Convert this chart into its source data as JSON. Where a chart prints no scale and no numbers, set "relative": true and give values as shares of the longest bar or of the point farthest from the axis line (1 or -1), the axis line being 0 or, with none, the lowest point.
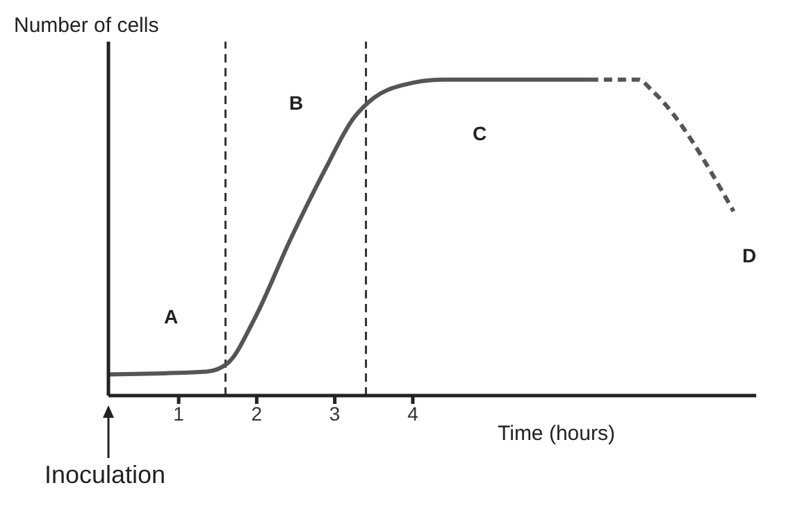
{
  "chart_data": {
    "type": "line",
    "relative": true,
    "xlabel": "Time (hours)",
    "ylabel": "Number of cells",
    "xlim": [
      0.1,
      8.4
    ],
    "xticks": [
      1,
      2,
      3,
      4
    ],
    "grid": false,
    "legend": false,
    "marker": "none",
    "series": [
      {
        "color": "#555555",
        "line_style": "solid",
        "x": [
          0.11,
          1.36,
          1.63,
          1.98,
          2.43,
          2.88,
          3.23,
          3.5,
          3.86,
          4.39,
          6.27
        ],
        "values": [
          0.067,
          0.076,
          0.103,
          0.247,
          0.493,
          0.717,
          0.874,
          0.942,
          0.982,
          1.0,
          1.0
        ]
      },
      {
        "color": "#555555",
        "line_style": "dashed",
        "x": [
          6.27,
          6.89,
          7.07,
          8.11
        ],
        "values": [
          1.0,
          1.0,
          0.964,
          0.583
        ]
      }
    ],
    "ref_lines": [
      {
        "axis": "x",
        "value": 1.6,
        "line_style": "dashed",
        "color": "#333333"
      },
      {
        "axis": "x",
        "value": 3.4,
        "line_style": "dashed",
        "color": "#333333"
      }
    ],
    "annotations": [
      "A",
      "B",
      "C",
      "D",
      "Inoculation"
    ]
  }
}
